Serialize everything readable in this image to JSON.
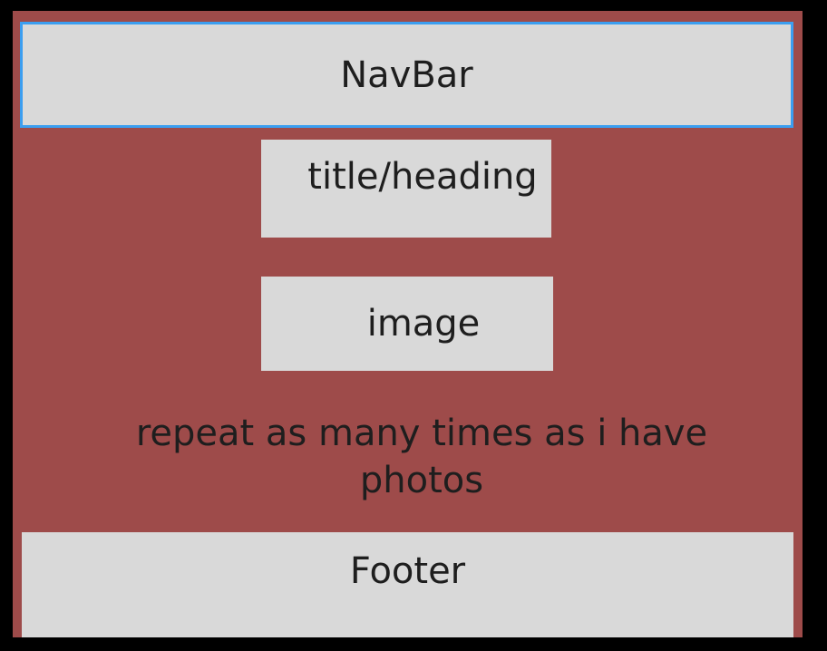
{
  "diagram": {
    "navbar_label": "NavBar",
    "title_label": "title/heading",
    "image_label": "image",
    "note_text": "repeat as many times as i have photos",
    "footer_label": "Footer"
  },
  "colors": {
    "background": "#000000",
    "frame": "#9e4b4a",
    "box": "#d9d9d9",
    "selection_border": "#3b9ef0",
    "text": "#1e1e1e"
  }
}
